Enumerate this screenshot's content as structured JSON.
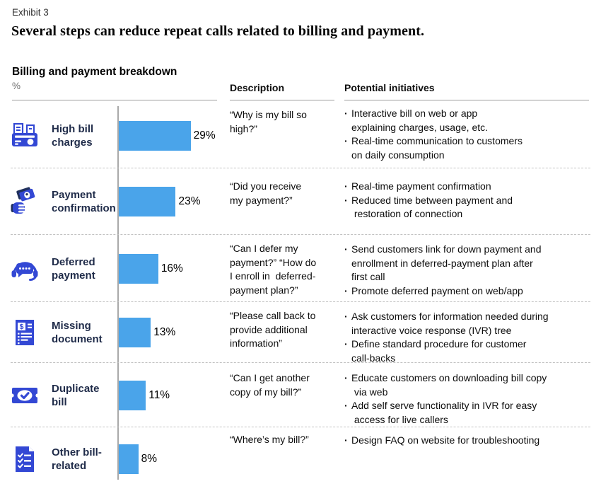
{
  "exhibit_label": "Exhibit 3",
  "title": "Several steps can reduce repeat calls related to billing and payment.",
  "bullet": "·",
  "header": {
    "breakdown_title": "Billing and payment breakdown",
    "unit": "%",
    "description": "Description",
    "initiatives": "Potential initiatives"
  },
  "colors": {
    "bar": "#4aa4ea",
    "icon_primary": "#3348d4",
    "icon_dark": "#20305c",
    "label_navy": "#1f2b49"
  },
  "chart_data": {
    "type": "bar",
    "orientation": "horizontal",
    "title": "Billing and payment breakdown",
    "unit": "%",
    "categories": [
      "High bill charges",
      "Payment confirmation",
      "Deferred payment",
      "Missing document",
      "Duplicate bill",
      "Other bill-related"
    ],
    "values": [
      29,
      23,
      16,
      13,
      11,
      8
    ],
    "value_labels": [
      "29%",
      "23%",
      "16%",
      "13%",
      "11%",
      "8%"
    ],
    "xlim": [
      0,
      44
    ],
    "grid": false,
    "legend": false,
    "bar_color": "#4aa4ea"
  },
  "rows": [
    {
      "icon": "cash-register-icon",
      "label": "High bill\ncharges",
      "value": 29,
      "value_label": "29%",
      "description": "“Why is my bill so\nhigh?”",
      "initiatives": [
        "Interactive bill on web or app\nexplaining charges, usage, etc.",
        "Real-time communication to customers\non daily consumption"
      ]
    },
    {
      "icon": "money-hand-icon",
      "label": "Payment\nconfirmation",
      "value": 23,
      "value_label": "23%",
      "description": "“Did you receive\nmy payment?”",
      "initiatives": [
        "Real-time payment confirmation",
        "Reduced time between payment and\n restoration of connection"
      ]
    },
    {
      "icon": "headset-chat-icon",
      "label": "Deferred\npayment",
      "value": 16,
      "value_label": "16%",
      "description": "“Can I defer my\npayment?” “How do\nI enroll in  deferred-\npayment plan?”",
      "initiatives": [
        "Send customers link for down payment and\nenrollment in deferred-payment plan after\nfirst call",
        "Promote deferred payment on web/app"
      ]
    },
    {
      "icon": "dollar-receipt-icon",
      "label": "Missing\ndocument",
      "value": 13,
      "value_label": "13%",
      "description": "“Please call back to\nprovide additional\ninformation”",
      "initiatives": [
        "Ask customers for information needed during\ninteractive voice response (IVR) tree",
        "Define standard procedure for customer\ncall-backs"
      ]
    },
    {
      "icon": "bill-check-icon",
      "label": "Duplicate\nbill",
      "value": 11,
      "value_label": "11%",
      "description": "“Can I get another\ncopy of my bill?”",
      "initiatives": [
        "Educate customers on downloading bill copy\n via web",
        "Add self serve functionality in IVR for easy\n access for live callers"
      ]
    },
    {
      "icon": "checklist-doc-icon",
      "label": "Other bill-\nrelated",
      "value": 8,
      "value_label": "8%",
      "description": "“Where’s my bill?”",
      "initiatives": [
        "Design FAQ on website for troubleshooting"
      ]
    }
  ]
}
